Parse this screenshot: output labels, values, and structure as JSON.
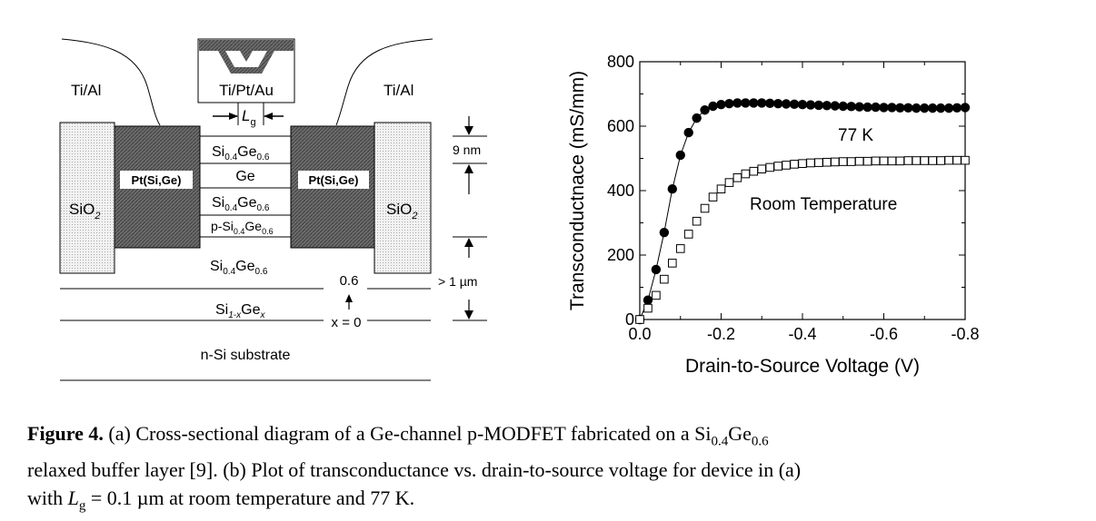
{
  "diagram": {
    "ti_al_left": "Ti/Al",
    "ti_al_right": "Ti/Al",
    "gate_metal": "Ti/Pt/Au",
    "lg_main": "L",
    "lg_sub": "g",
    "pt_left": "Pt(Si,Ge)",
    "pt_right": "Pt(Si,Ge)",
    "sio2_main": "SiO",
    "sio2_sub": "2",
    "layer1_a": "Si",
    "layer1_sub1": "0.4",
    "layer1_b": "Ge",
    "layer1_sub2": "0.6",
    "layer2": "Ge",
    "layer3_a": "Si",
    "layer3_sub1": "0.4",
    "layer3_b": "Ge",
    "layer3_sub2": "0.6",
    "layer4_a": "p-Si",
    "layer4_sub1": "0.4",
    "layer4_b": "Ge",
    "layer4_sub2": "0.6",
    "buffer_a": "Si",
    "buffer_sub1": "0.4",
    "buffer_b": "Ge",
    "buffer_sub2": "0.6",
    "graded_a": "Si",
    "graded_sub1": "1-x",
    "graded_b": "Ge",
    "graded_sub2": "x",
    "x_top": "0.6",
    "x_bottom": "x = 0",
    "substrate": "n-Si substrate",
    "dim_9nm": "9 nm",
    "dim_1um": "> 1 µm"
  },
  "chart_data": {
    "type": "scatter",
    "xlabel": "Drain-to-Source Voltage (V)",
    "ylabel": "Transconductnace (mS/mm)",
    "xlim": [
      0.0,
      -0.8
    ],
    "ylim": [
      0,
      800
    ],
    "x_ticks": [
      "0.0",
      "-0.2",
      "-0.4",
      "-0.6",
      "-0.8"
    ],
    "y_ticks": [
      "0",
      "200",
      "400",
      "600",
      "800"
    ],
    "series": [
      {
        "name": "77 K",
        "marker": "filled-circle",
        "fit_line": true,
        "x": [
          0.0,
          -0.02,
          -0.04,
          -0.06,
          -0.08,
          -0.1,
          -0.12,
          -0.14,
          -0.16,
          -0.18,
          -0.2,
          -0.22,
          -0.24,
          -0.26,
          -0.28,
          -0.3,
          -0.32,
          -0.34,
          -0.36,
          -0.38,
          -0.4,
          -0.42,
          -0.44,
          -0.46,
          -0.48,
          -0.5,
          -0.52,
          -0.54,
          -0.56,
          -0.58,
          -0.6,
          -0.62,
          -0.64,
          -0.66,
          -0.68,
          -0.7,
          -0.72,
          -0.74,
          -0.76,
          -0.78,
          -0.8
        ],
        "y": [
          0,
          60,
          155,
          270,
          405,
          510,
          580,
          625,
          650,
          662,
          667,
          670,
          672,
          672,
          672,
          672,
          671,
          670,
          669,
          668,
          667,
          666,
          665,
          664,
          663,
          662,
          661,
          660,
          659,
          659,
          658,
          658,
          657,
          657,
          656,
          656,
          656,
          656,
          656,
          657,
          658
        ]
      },
      {
        "name": "Room Temperature",
        "marker": "open-square",
        "fit_line": false,
        "x": [
          0.0,
          -0.02,
          -0.04,
          -0.06,
          -0.08,
          -0.1,
          -0.12,
          -0.14,
          -0.16,
          -0.18,
          -0.2,
          -0.22,
          -0.24,
          -0.26,
          -0.28,
          -0.3,
          -0.32,
          -0.34,
          -0.36,
          -0.38,
          -0.4,
          -0.42,
          -0.44,
          -0.46,
          -0.48,
          -0.5,
          -0.52,
          -0.54,
          -0.56,
          -0.58,
          -0.6,
          -0.62,
          -0.64,
          -0.66,
          -0.68,
          -0.7,
          -0.72,
          -0.74,
          -0.76,
          -0.78,
          -0.8
        ],
        "y": [
          0,
          35,
          75,
          125,
          175,
          220,
          265,
          305,
          345,
          380,
          405,
          425,
          440,
          452,
          460,
          467,
          472,
          476,
          479,
          482,
          484,
          486,
          487,
          488,
          489,
          490,
          490,
          491,
          491,
          492,
          492,
          492,
          492,
          493,
          493,
          493,
          493,
          493,
          494,
          494,
          494
        ]
      }
    ],
    "annotations": [
      "77 K",
      "Room Temperature"
    ]
  },
  "caption": {
    "label": "Figure 4.",
    "text1": " (a) Cross-sectional diagram of a Ge-channel p-MODFET fabricated on a Si",
    "sub1": "0.4",
    "text2": "Ge",
    "sub2": "0.6",
    "text3": "relaxed buffer layer [9]. (b) Plot of transconductance vs. drain-to-source voltage for device in (a)",
    "text4": "with ",
    "lg_italic": "L",
    "lg_sub": "g",
    "text5": " = 0.1 µm at room temperature and 77 K."
  }
}
